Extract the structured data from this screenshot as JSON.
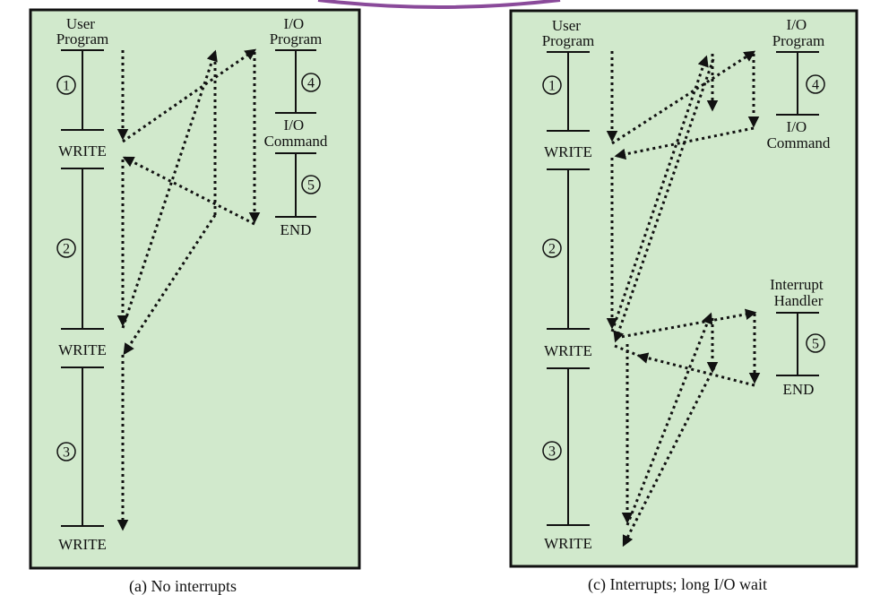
{
  "panel_a": {
    "caption": "(a) No interrupts",
    "user_program": "User\nProgram",
    "io_program": "I/O\nProgram",
    "io_command": "I/O\nCommand",
    "end": "END",
    "write": [
      "WRITE",
      "WRITE",
      "WRITE"
    ],
    "steps": [
      "1",
      "2",
      "3",
      "4",
      "5"
    ]
  },
  "panel_c": {
    "caption": "(c) Interrupts; long I/O wait",
    "user_program": "User\nProgram",
    "io_program": "I/O\nProgram",
    "io_command": "I/O\nCommand",
    "interrupt_handler": "Interrupt\nHandler",
    "end": "END",
    "write": [
      "WRITE",
      "WRITE",
      "WRITE"
    ],
    "steps": [
      "1",
      "2",
      "3",
      "4",
      "5"
    ]
  },
  "colors": {
    "panel_fill": "#d1e9cc",
    "ink": "#111111",
    "top_accent": "#8a4a9a"
  }
}
